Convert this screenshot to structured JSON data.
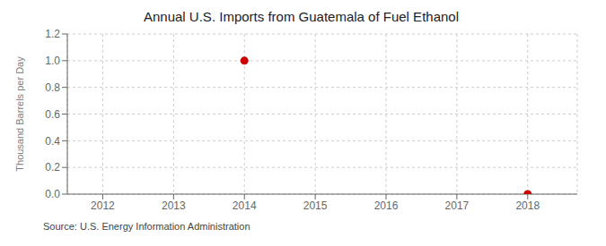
{
  "chart_data": {
    "type": "scatter",
    "title": "Annual U.S. Imports from Guatemala of Fuel Ethanol",
    "ylabel": "Thousand Barrels per Day",
    "annotations": [
      "Source: U.S. Energy Information Administration"
    ],
    "x": [
      2014,
      2018
    ],
    "values": [
      1.0,
      0.0
    ],
    "color": "#cc0000",
    "xlim": [
      2011.5,
      2018.7
    ],
    "ylim": [
      0.0,
      1.2
    ],
    "xticks": [
      2012,
      2013,
      2014,
      2015,
      2016,
      2017,
      2018
    ],
    "yticks": [
      {
        "value": 0.0,
        "label": "0.0"
      },
      0.2,
      0.4,
      0.6,
      0.8,
      {
        "value": 1.0,
        "label": "1.0"
      },
      1.2
    ],
    "grid": true
  }
}
